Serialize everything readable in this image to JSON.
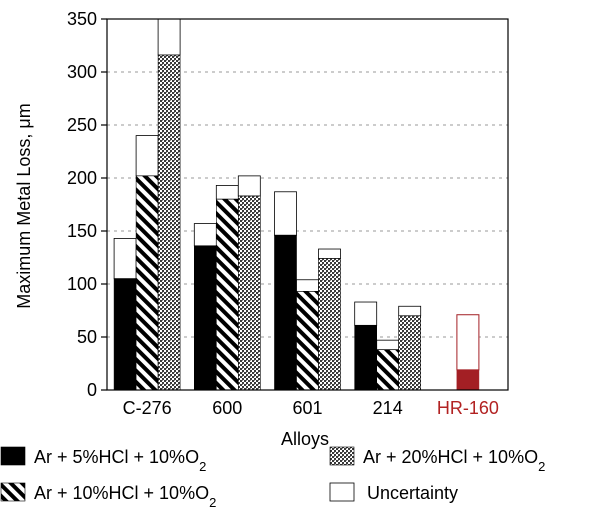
{
  "chart_data": {
    "type": "bar",
    "xlabel": "Alloys",
    "ylabel": "Maximum Metal Loss, μm",
    "ylim": [
      0,
      350
    ],
    "yticks": [
      0,
      50,
      100,
      150,
      200,
      250,
      300,
      350
    ],
    "grid": "horizontal dashed",
    "legend_position": "bottom",
    "categories": [
      {
        "label": "C-276",
        "color": "#000000"
      },
      {
        "label": "600",
        "color": "#000000"
      },
      {
        "label": "601",
        "color": "#000000"
      },
      {
        "label": "214",
        "color": "#000000"
      },
      {
        "label": "HR-160",
        "color": "#b22222"
      }
    ],
    "series": [
      {
        "legend_prefix": "Ar + 5%HCl + 10%O",
        "legend_sub": "2",
        "pattern": "solid",
        "values": [
          105,
          136,
          146,
          61,
          null
        ],
        "upper": [
          143,
          157,
          187,
          83,
          null
        ]
      },
      {
        "legend_prefix": "Ar + 10%HCl + 10%O",
        "legend_sub": "2",
        "pattern": "diagonal",
        "values": [
          202,
          180,
          93,
          38,
          null
        ],
        "upper": [
          240,
          193,
          104,
          47,
          null
        ]
      },
      {
        "legend_prefix": "Ar + 20%HCl + 10%O",
        "legend_sub": "2",
        "pattern": "dotted",
        "values": [
          316,
          183,
          124,
          70,
          null
        ],
        "upper": [
          350,
          202,
          133,
          79,
          null
        ]
      }
    ],
    "special_bars": [
      {
        "category": "HR-160",
        "value": 19,
        "upper": 71,
        "color": "#a31f24"
      }
    ],
    "uncertainty_legend": "Uncertainty"
  }
}
